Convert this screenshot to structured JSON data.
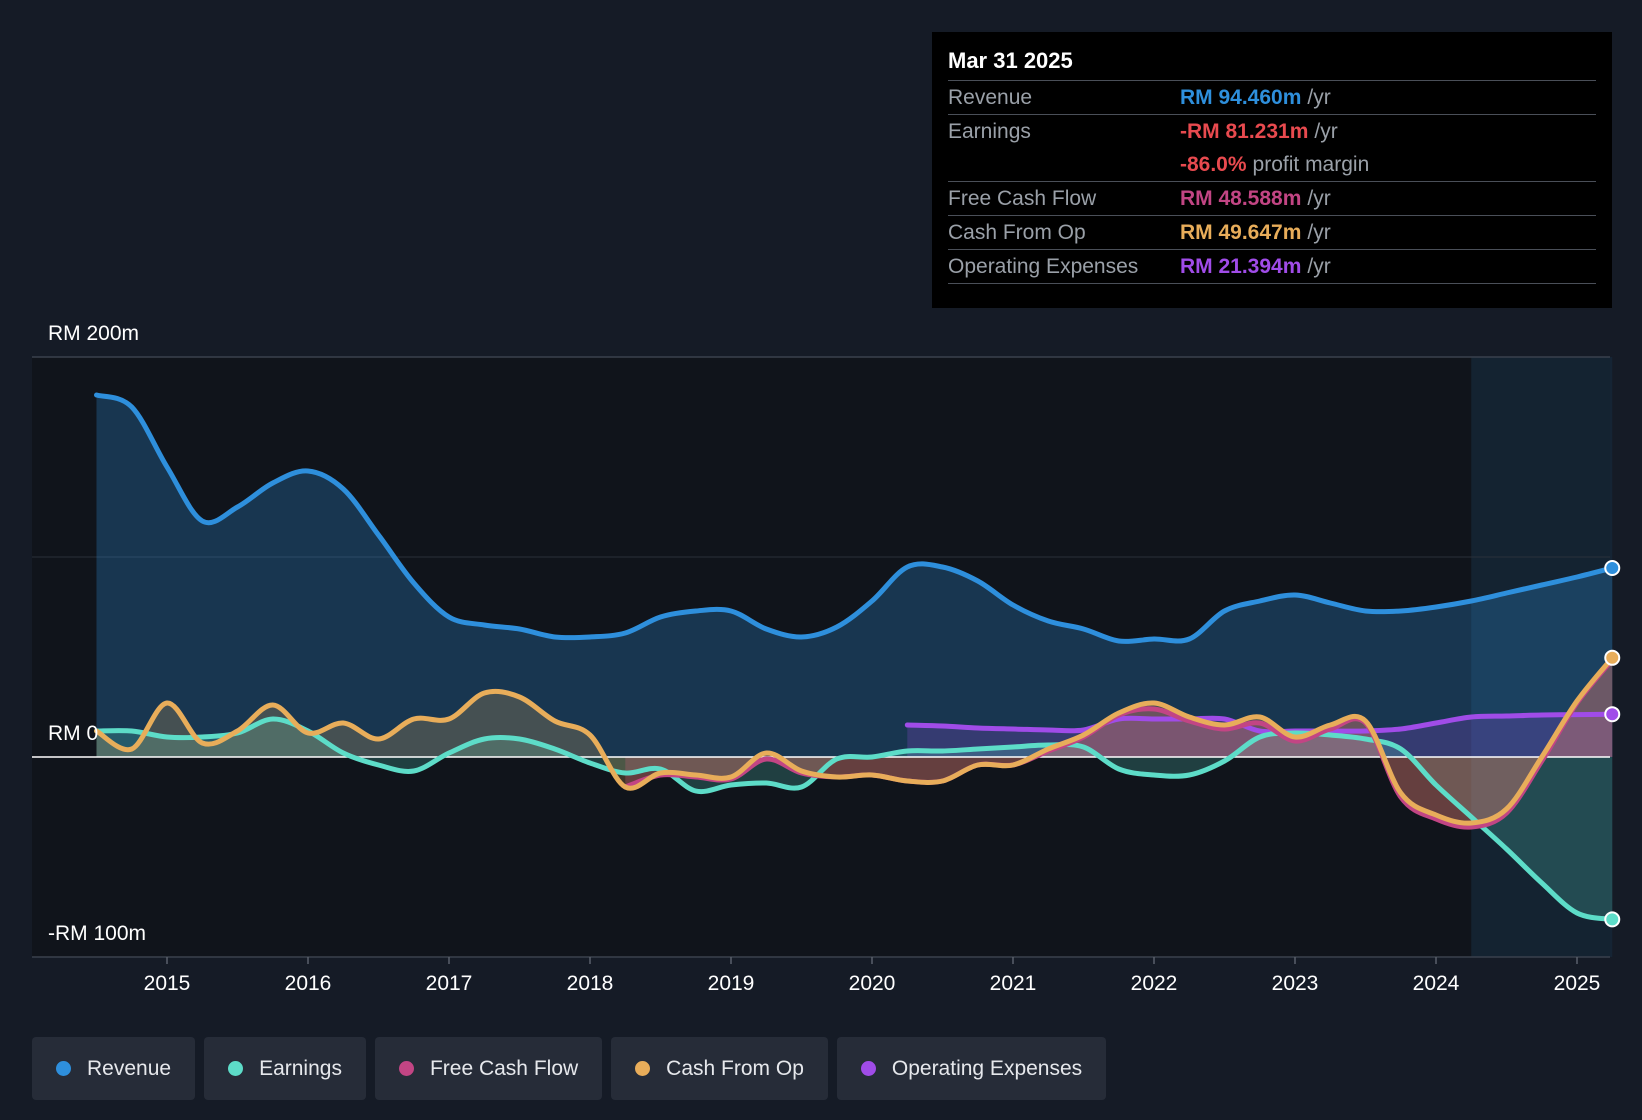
{
  "tooltip": {
    "date": "Mar 31 2025",
    "revenue": {
      "label": "Revenue",
      "value": "RM 94.460m",
      "unit": "/yr"
    },
    "earnings": {
      "label": "Earnings",
      "value": "-RM 81.231m",
      "unit": "/yr",
      "margin_value": "-86.0%",
      "margin_label": "profit margin"
    },
    "fcf": {
      "label": "Free Cash Flow",
      "value": "RM 48.588m",
      "unit": "/yr"
    },
    "cfo": {
      "label": "Cash From Op",
      "value": "RM 49.647m",
      "unit": "/yr"
    },
    "opex": {
      "label": "Operating Expenses",
      "value": "RM 21.394m",
      "unit": "/yr"
    }
  },
  "legend": [
    "Revenue",
    "Earnings",
    "Free Cash Flow",
    "Cash From Op",
    "Operating Expenses"
  ],
  "colors": {
    "revenue": "#2e8fdc",
    "earnings": "#5ddcc8",
    "fcf": "#c24584",
    "cfo": "#e8ad5a",
    "opex": "#a04ce8",
    "background": "#151b26"
  },
  "chart_data": {
    "type": "line",
    "title": "",
    "y_label_top": "RM 200m",
    "y_label_zero": "RM 0",
    "y_label_bottom": "-RM 100m",
    "ylim": [
      -100,
      200
    ],
    "xlim": [
      2014.5,
      2025.25
    ],
    "x_ticks": [
      "2015",
      "2016",
      "2017",
      "2018",
      "2019",
      "2020",
      "2021",
      "2022",
      "2023",
      "2024",
      "2025"
    ],
    "highlight_from": 2024.25,
    "series": [
      {
        "name": "Revenue",
        "key": "revenue",
        "points": [
          [
            2014.5,
            181
          ],
          [
            2014.75,
            175
          ],
          [
            2015,
            145
          ],
          [
            2015.25,
            118
          ],
          [
            2015.5,
            125
          ],
          [
            2015.75,
            137
          ],
          [
            2016,
            143
          ],
          [
            2016.25,
            134
          ],
          [
            2016.5,
            111
          ],
          [
            2016.75,
            87
          ],
          [
            2017,
            70
          ],
          [
            2017.25,
            66
          ],
          [
            2017.5,
            64
          ],
          [
            2017.75,
            60
          ],
          [
            2018,
            60
          ],
          [
            2018.25,
            62
          ],
          [
            2018.5,
            70
          ],
          [
            2018.75,
            73
          ],
          [
            2019,
            73
          ],
          [
            2019.25,
            64
          ],
          [
            2019.5,
            60
          ],
          [
            2019.75,
            65
          ],
          [
            2020,
            78
          ],
          [
            2020.25,
            95
          ],
          [
            2020.5,
            95
          ],
          [
            2020.75,
            88
          ],
          [
            2021,
            76
          ],
          [
            2021.25,
            68
          ],
          [
            2021.5,
            64
          ],
          [
            2021.75,
            58
          ],
          [
            2022,
            59
          ],
          [
            2022.25,
            59
          ],
          [
            2022.5,
            73
          ],
          [
            2022.75,
            78
          ],
          [
            2023,
            81
          ],
          [
            2023.25,
            77
          ],
          [
            2023.5,
            73
          ],
          [
            2023.75,
            73
          ],
          [
            2024,
            75
          ],
          [
            2024.25,
            78
          ],
          [
            2024.5,
            82
          ],
          [
            2024.75,
            86
          ],
          [
            2025,
            90
          ],
          [
            2025.25,
            94.5
          ]
        ]
      },
      {
        "name": "Earnings",
        "key": "earnings",
        "points": [
          [
            2014.5,
            13
          ],
          [
            2014.75,
            13
          ],
          [
            2015,
            10
          ],
          [
            2015.25,
            10
          ],
          [
            2015.5,
            12
          ],
          [
            2015.75,
            19
          ],
          [
            2016,
            13
          ],
          [
            2016.25,
            2
          ],
          [
            2016.5,
            -4
          ],
          [
            2016.75,
            -7
          ],
          [
            2017,
            2
          ],
          [
            2017.25,
            9
          ],
          [
            2017.5,
            9
          ],
          [
            2017.75,
            4
          ],
          [
            2018,
            -3
          ],
          [
            2018.25,
            -8
          ],
          [
            2018.5,
            -6
          ],
          [
            2018.75,
            -17
          ],
          [
            2019,
            -14
          ],
          [
            2019.25,
            -13
          ],
          [
            2019.5,
            -15
          ],
          [
            2019.75,
            -1
          ],
          [
            2020,
            0
          ],
          [
            2020.25,
            3
          ],
          [
            2020.5,
            3
          ],
          [
            2020.75,
            4
          ],
          [
            2021,
            5
          ],
          [
            2021.25,
            6
          ],
          [
            2021.5,
            5
          ],
          [
            2021.75,
            -6
          ],
          [
            2022,
            -9
          ],
          [
            2022.25,
            -9
          ],
          [
            2022.5,
            -2
          ],
          [
            2022.75,
            10
          ],
          [
            2023,
            12
          ],
          [
            2023.25,
            11
          ],
          [
            2023.5,
            9
          ],
          [
            2023.75,
            4
          ],
          [
            2024,
            -14
          ],
          [
            2024.25,
            -30
          ],
          [
            2024.5,
            -46
          ],
          [
            2024.75,
            -63
          ],
          [
            2025,
            -78
          ],
          [
            2025.25,
            -81.2
          ]
        ]
      },
      {
        "name": "Free Cash Flow",
        "key": "fcf",
        "points": [
          [
            2018.25,
            -15
          ],
          [
            2018.5,
            -9
          ],
          [
            2018.75,
            -10
          ],
          [
            2019,
            -11
          ],
          [
            2019.25,
            -1
          ],
          [
            2019.5,
            -8
          ],
          [
            2019.75,
            -10
          ],
          [
            2020,
            -9
          ],
          [
            2020.25,
            -12
          ],
          [
            2020.5,
            -12
          ],
          [
            2020.75,
            -4
          ],
          [
            2021,
            -4
          ],
          [
            2021.25,
            3
          ],
          [
            2021.5,
            10
          ],
          [
            2021.75,
            21
          ],
          [
            2022,
            24
          ],
          [
            2022.25,
            18
          ],
          [
            2022.5,
            14
          ],
          [
            2022.75,
            17
          ],
          [
            2023,
            8
          ],
          [
            2023.25,
            14
          ],
          [
            2023.5,
            17
          ],
          [
            2023.75,
            -20
          ],
          [
            2024,
            -31
          ],
          [
            2024.25,
            -35
          ],
          [
            2024.5,
            -28
          ],
          [
            2024.75,
            -2
          ],
          [
            2025,
            27
          ],
          [
            2025.25,
            48.6
          ]
        ]
      },
      {
        "name": "Cash From Op",
        "key": "cfo",
        "points": [
          [
            2014.5,
            13
          ],
          [
            2014.75,
            4
          ],
          [
            2015,
            27
          ],
          [
            2015.25,
            7
          ],
          [
            2015.5,
            13
          ],
          [
            2015.75,
            26
          ],
          [
            2016,
            12
          ],
          [
            2016.25,
            17
          ],
          [
            2016.5,
            9
          ],
          [
            2016.75,
            19
          ],
          [
            2017,
            19
          ],
          [
            2017.25,
            32
          ],
          [
            2017.5,
            30
          ],
          [
            2017.75,
            18
          ],
          [
            2018,
            11
          ],
          [
            2018.25,
            -15
          ],
          [
            2018.5,
            -8
          ],
          [
            2018.75,
            -9
          ],
          [
            2019,
            -10
          ],
          [
            2019.25,
            2
          ],
          [
            2019.5,
            -7
          ],
          [
            2019.75,
            -10
          ],
          [
            2020,
            -9
          ],
          [
            2020.25,
            -12
          ],
          [
            2020.5,
            -12
          ],
          [
            2020.75,
            -4
          ],
          [
            2021,
            -4
          ],
          [
            2021.25,
            4
          ],
          [
            2021.5,
            11
          ],
          [
            2021.75,
            22
          ],
          [
            2022,
            27
          ],
          [
            2022.25,
            20
          ],
          [
            2022.5,
            16
          ],
          [
            2022.75,
            20
          ],
          [
            2023,
            10
          ],
          [
            2023.25,
            16
          ],
          [
            2023.5,
            18
          ],
          [
            2023.75,
            -18
          ],
          [
            2024,
            -29
          ],
          [
            2024.25,
            -33
          ],
          [
            2024.5,
            -26
          ],
          [
            2024.75,
            0
          ],
          [
            2025,
            28
          ],
          [
            2025.25,
            49.6
          ]
        ]
      },
      {
        "name": "Operating Expenses",
        "key": "opex",
        "points": [
          [
            2020.25,
            16
          ],
          [
            2020.5,
            15.5
          ],
          [
            2020.75,
            14.5
          ],
          [
            2021,
            14
          ],
          [
            2021.25,
            13.5
          ],
          [
            2021.5,
            13.5
          ],
          [
            2021.75,
            19
          ],
          [
            2022,
            19
          ],
          [
            2022.25,
            19
          ],
          [
            2022.5,
            19
          ],
          [
            2022.75,
            13
          ],
          [
            2023,
            13
          ],
          [
            2023.25,
            13
          ],
          [
            2023.5,
            13
          ],
          [
            2023.75,
            14
          ],
          [
            2024,
            17
          ],
          [
            2024.25,
            20
          ],
          [
            2024.5,
            20.5
          ],
          [
            2024.75,
            21
          ],
          [
            2025,
            21.2
          ],
          [
            2025.25,
            21.4
          ]
        ]
      }
    ]
  }
}
